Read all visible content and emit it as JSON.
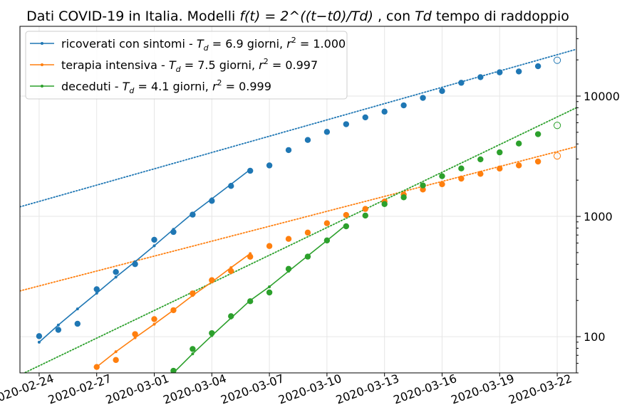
{
  "chart_data": {
    "type": "scatter",
    "title": {
      "main": "Dati COVID-19 in Italia. Modelli ",
      "formula": "f(t) = 2^((t−t0)/Td)",
      "tail1": ", con ",
      "td_symbol": "Td",
      "tail2": " tempo di raddoppio"
    },
    "xlabel": "",
    "ylabel": "",
    "y_scale": "log",
    "ylim": [
      50,
      38000
    ],
    "x_range": [
      "2020-02-23",
      "2020-03-23"
    ],
    "x_tick_labels": [
      "2020-02-24",
      "2020-02-27",
      "2020-03-01",
      "2020-03-04",
      "2020-03-07",
      "2020-03-10",
      "2020-03-13",
      "2020-03-16",
      "2020-03-19",
      "2020-03-22"
    ],
    "y_tick_labels": [
      "100",
      "1000",
      "10000"
    ],
    "y_ticks": [
      100,
      1000,
      10000
    ],
    "y_axis_side": "right",
    "grid": true,
    "legend_position": "top-left",
    "series": [
      {
        "name": "ricoverati con sintomi",
        "legend_label": "ricoverati con sintomi - T_d = 6.9 giorni, r^2 = 1.000",
        "legend_prefix": "ricoverati con sintomi - ",
        "td": "6.9",
        "r2": "1.000",
        "color": "#1f77b4",
        "dates": [
          "2020-02-24",
          "2020-02-25",
          "2020-02-26",
          "2020-02-27",
          "2020-02-28",
          "2020-02-29",
          "2020-03-01",
          "2020-03-02",
          "2020-03-03",
          "2020-03-04",
          "2020-03-05",
          "2020-03-06",
          "2020-03-07",
          "2020-03-08",
          "2020-03-09",
          "2020-03-10",
          "2020-03-11",
          "2020-03-12",
          "2020-03-13",
          "2020-03-14",
          "2020-03-15",
          "2020-03-16",
          "2020-03-17",
          "2020-03-18",
          "2020-03-19",
          "2020-03-20",
          "2020-03-21"
        ],
        "values": [
          101,
          114,
          128,
          248,
          345,
          401,
          639,
          742,
          1034,
          1346,
          1790,
          2394,
          2651,
          3557,
          4316,
          5038,
          5838,
          6650,
          7426,
          8372,
          9663,
          11025,
          12894,
          14363,
          15757,
          16020,
          17708
        ],
        "fit_values": [
          90,
          125,
          170,
          230,
          313,
          420,
          570,
          780,
          1060,
          1400,
          1850,
          2450
        ],
        "projection": {
          "date": "2020-03-22",
          "value": 19846
        },
        "trend_line": {
          "start": [
            "2020-02-23",
            1200
          ],
          "end": [
            "2020-03-23",
            24500
          ]
        }
      },
      {
        "name": "terapia intensiva",
        "legend_label": "terapia intensiva - T_d = 7.5 giorni, r^2 = 0.997",
        "legend_prefix": "terapia intensiva - ",
        "td": "7.5",
        "r2": "0.997",
        "color": "#ff7f0e",
        "dates": [
          "2020-02-27",
          "2020-02-28",
          "2020-02-29",
          "2020-03-01",
          "2020-03-02",
          "2020-03-03",
          "2020-03-04",
          "2020-03-05",
          "2020-03-06",
          "2020-03-07",
          "2020-03-08",
          "2020-03-09",
          "2020-03-10",
          "2020-03-11",
          "2020-03-12",
          "2020-03-13",
          "2020-03-14",
          "2020-03-15",
          "2020-03-16",
          "2020-03-17",
          "2020-03-18",
          "2020-03-19",
          "2020-03-20",
          "2020-03-21"
        ],
        "values": [
          56,
          64,
          105,
          140,
          166,
          229,
          295,
          351,
          462,
          567,
          650,
          733,
          877,
          1028,
          1153,
          1328,
          1518,
          1672,
          1851,
          2060,
          2257,
          2498,
          2655,
          2857
        ],
        "fit_values": [
          56,
          75,
          98,
          127,
          166,
          220,
          285,
          375,
          490
        ],
        "projection": {
          "date": "2020-03-22",
          "value": 3180
        },
        "trend_line": {
          "start": [
            "2020-02-23",
            240
          ],
          "end": [
            "2020-03-23",
            3800
          ]
        }
      },
      {
        "name": "deceduti",
        "legend_label": "deceduti - T_d = 4.1 giorni, r^2 = 0.999",
        "legend_prefix": "deceduti - ",
        "td": "4.1",
        "r2": "0.999",
        "color": "#2ca02c",
        "dates": [
          "2020-03-02",
          "2020-03-03",
          "2020-03-04",
          "2020-03-05",
          "2020-03-06",
          "2020-03-07",
          "2020-03-08",
          "2020-03-09",
          "2020-03-10",
          "2020-03-11",
          "2020-03-12",
          "2020-03-13",
          "2020-03-14",
          "2020-03-15",
          "2020-03-16",
          "2020-03-17",
          "2020-03-18",
          "2020-03-19",
          "2020-03-20",
          "2020-03-21"
        ],
        "values": [
          52,
          79,
          107,
          148,
          197,
          233,
          366,
          463,
          631,
          827,
          1016,
          1266,
          1441,
          1809,
          2158,
          2503,
          2978,
          3405,
          4032,
          4825
        ],
        "fit_values": [
          50,
          72,
          102,
          143,
          200,
          260,
          350,
          470,
          630,
          850
        ],
        "projection": {
          "date": "2020-03-22",
          "value": 5700
        },
        "trend_line": {
          "start": [
            "2020-02-23",
            48
          ],
          "end": [
            "2020-03-23",
            8000
          ]
        }
      }
    ],
    "legend_td_prefix": "T",
    "legend_td_sub": "d",
    "legend_eq": " = ",
    "legend_unit": " giorni, ",
    "legend_r2_prefix": "r",
    "legend_r2_sup": "2"
  }
}
